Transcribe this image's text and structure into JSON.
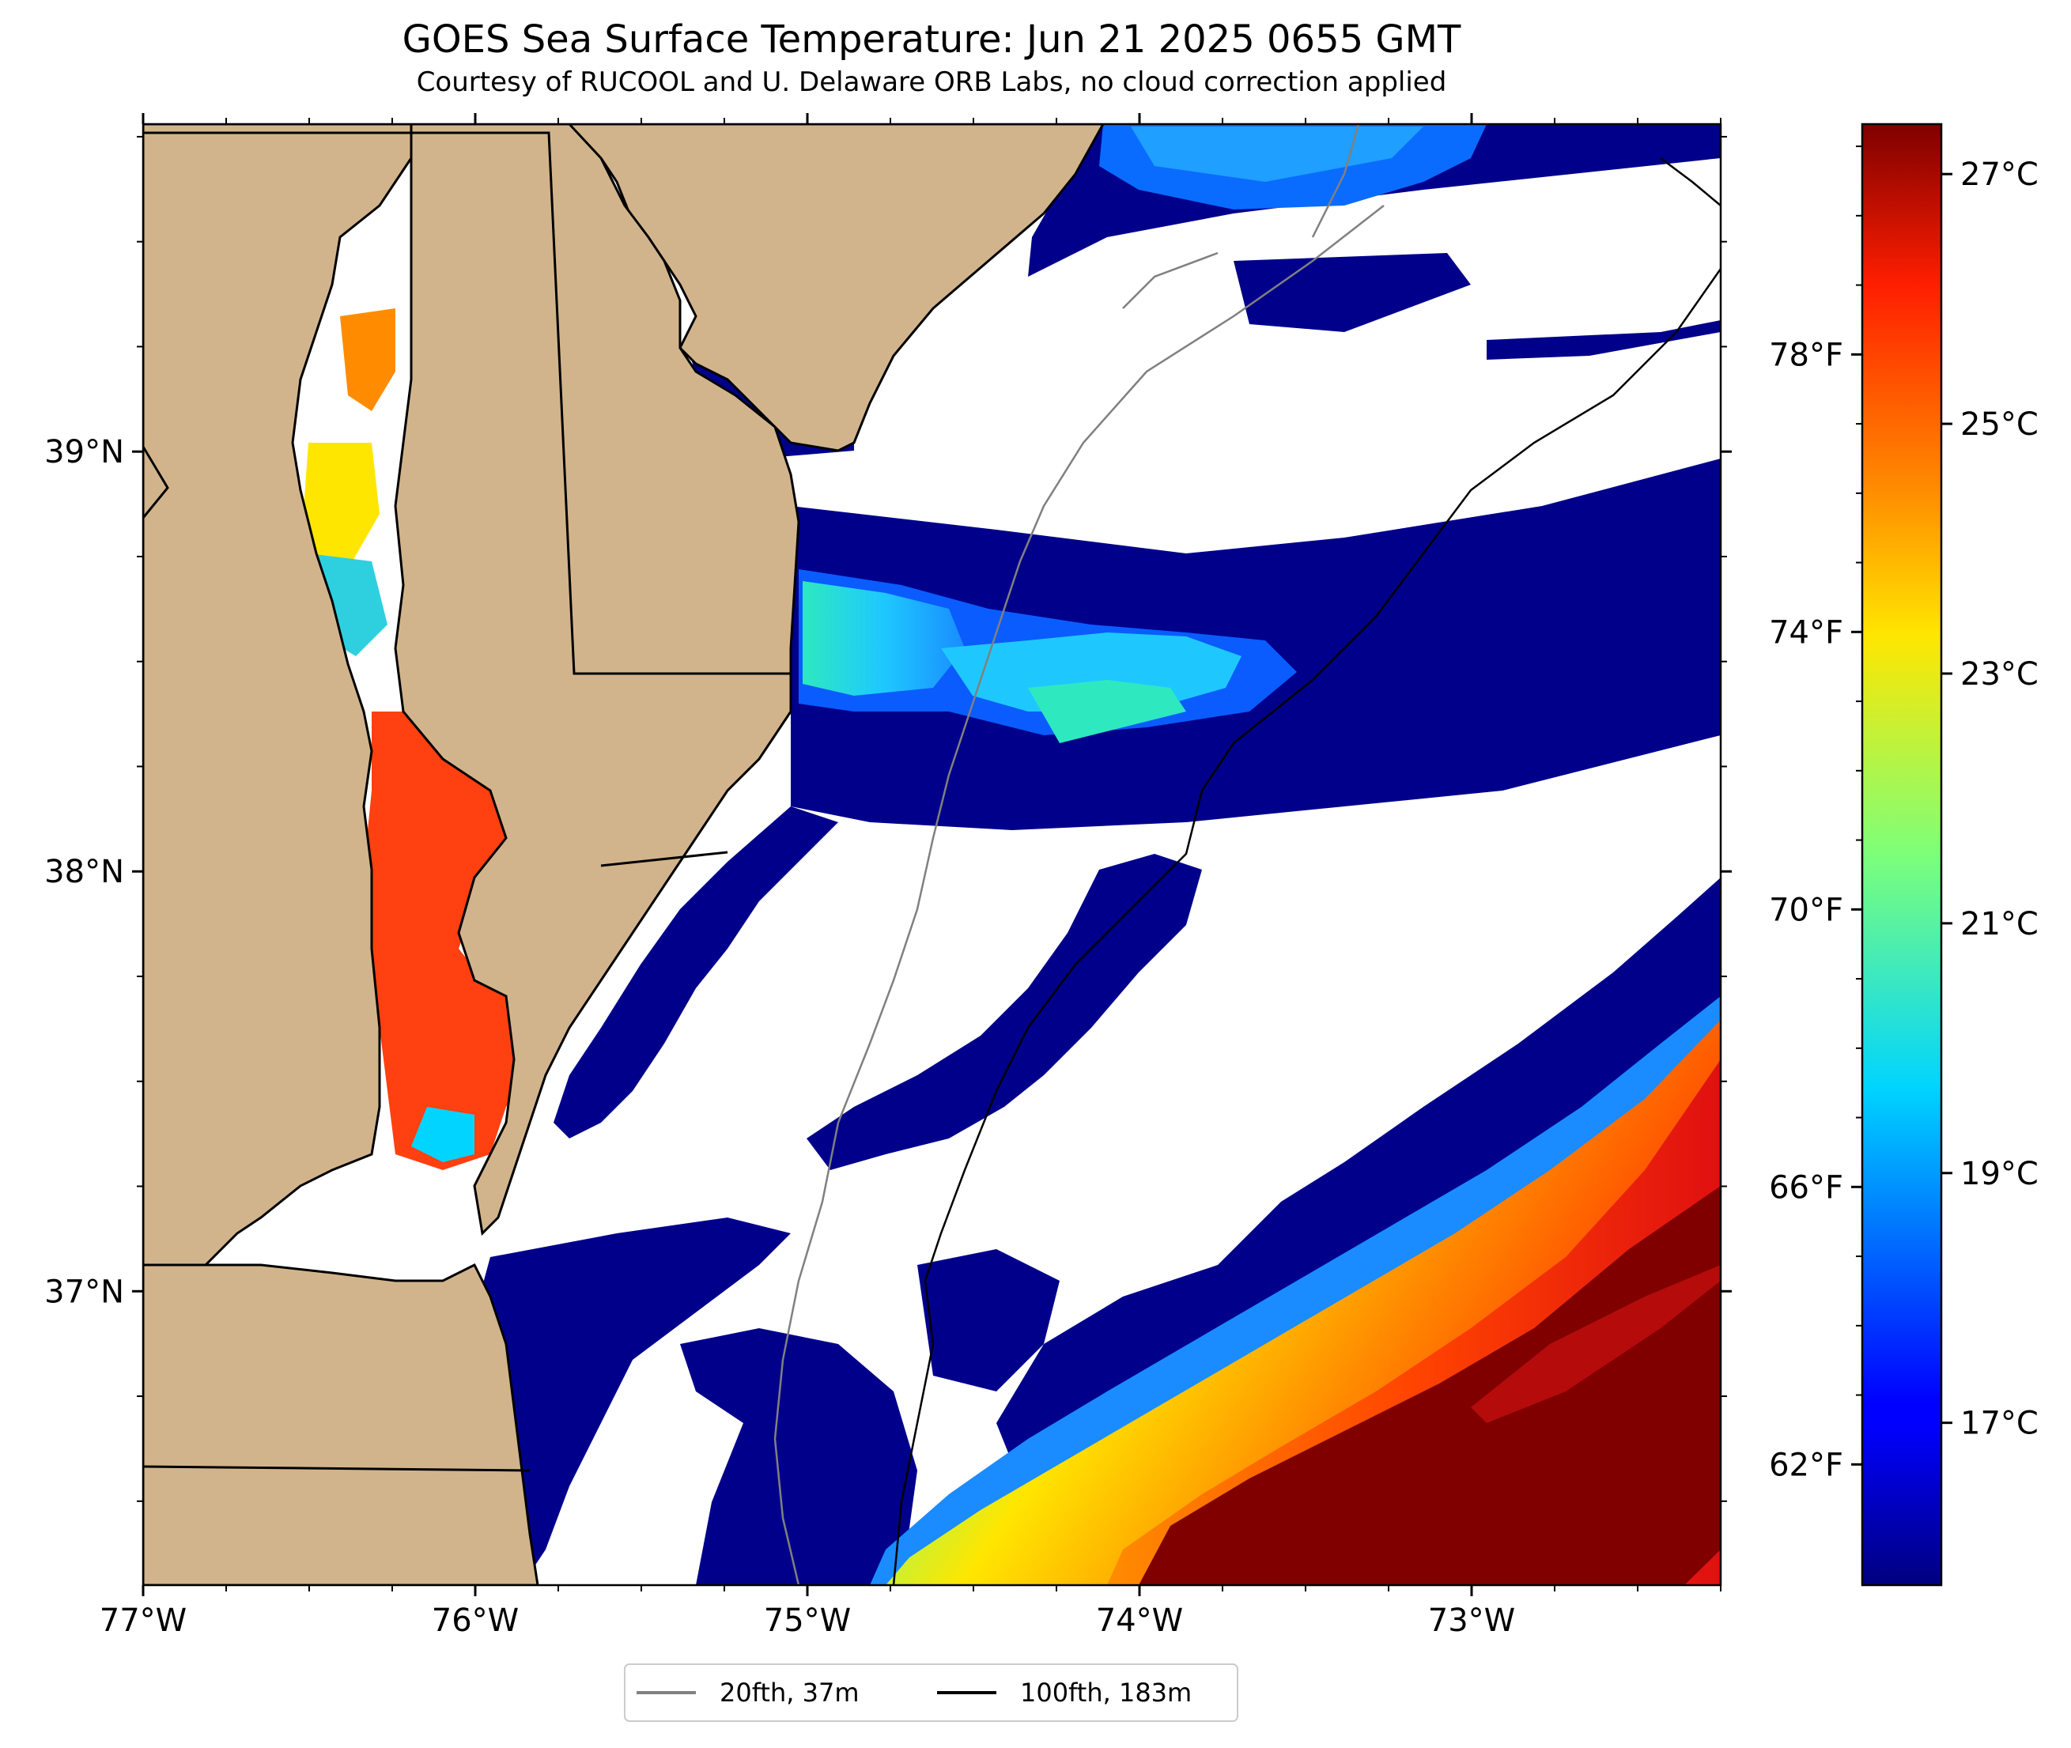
{
  "title": "GOES Sea Surface Temperature: Jun 21 2025 0655 GMT",
  "subtitle": "Courtesy of RUCOOL and U. Delaware ORB Labs, no cloud correction applied",
  "map": {
    "lon_range": [
      -77.0,
      -72.25
    ],
    "lat_range": [
      36.3,
      39.78
    ],
    "lon_ticks": [
      {
        "value": -77,
        "label": "77°W"
      },
      {
        "value": -76,
        "label": "76°W"
      },
      {
        "value": -75,
        "label": "75°W"
      },
      {
        "value": -74,
        "label": "74°W"
      },
      {
        "value": -73,
        "label": "73°W"
      }
    ],
    "lat_ticks": [
      {
        "value": 39,
        "label": "39°N"
      },
      {
        "value": 38,
        "label": "38°N"
      },
      {
        "value": 37,
        "label": "37°N"
      }
    ]
  },
  "colorbar": {
    "range_c": [
      15.7,
      27.4
    ],
    "celsius_ticks": [
      {
        "value": 17,
        "label": "17°C"
      },
      {
        "value": 19,
        "label": "19°C"
      },
      {
        "value": 21,
        "label": "21°C"
      },
      {
        "value": 23,
        "label": "23°C"
      },
      {
        "value": 25,
        "label": "25°C"
      },
      {
        "value": 27,
        "label": "27°C"
      }
    ],
    "fahrenheit_ticks": [
      {
        "value": 62,
        "label": "62°F"
      },
      {
        "value": 66,
        "label": "66°F"
      },
      {
        "value": 70,
        "label": "70°F"
      },
      {
        "value": 74,
        "label": "74°F"
      },
      {
        "value": 78,
        "label": "78°F"
      }
    ]
  },
  "legend": {
    "items": [
      {
        "label": "20fth, 37m",
        "color": "#808080"
      },
      {
        "label": "100fth, 183m",
        "color": "#000000"
      }
    ]
  },
  "colors": {
    "land": "#d2b48c",
    "cold": "#00008b",
    "hot": "#800000"
  }
}
